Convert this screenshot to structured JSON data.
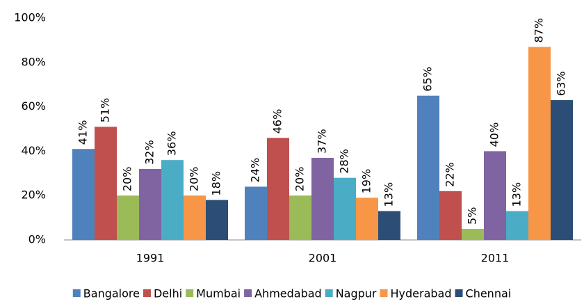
{
  "chart_data": {
    "type": "bar",
    "categories": [
      "1991",
      "2001",
      "2011"
    ],
    "series": [
      {
        "name": "Bangalore",
        "color": "#4f81bd",
        "values": [
          41,
          24,
          65
        ],
        "value_labels": [
          "41%",
          "24%",
          "65%"
        ]
      },
      {
        "name": "Delhi",
        "color": "#c0504d",
        "values": [
          51,
          46,
          22
        ],
        "value_labels": [
          "51%",
          "46%",
          "22%"
        ]
      },
      {
        "name": "Mumbai",
        "color": "#9bbb59",
        "values": [
          20,
          20,
          5
        ],
        "value_labels": [
          "20%",
          "20%",
          "5%"
        ]
      },
      {
        "name": "Ahmedabad",
        "color": "#8064a2",
        "values": [
          32,
          37,
          40
        ],
        "value_labels": [
          "32%",
          "37%",
          "40%"
        ]
      },
      {
        "name": "Nagpur",
        "color": "#4bacc6",
        "values": [
          36,
          28,
          13
        ],
        "value_labels": [
          "36%",
          "28%",
          "13%"
        ]
      },
      {
        "name": "Hyderabad",
        "color": "#f79646",
        "values": [
          20,
          19,
          87
        ],
        "value_labels": [
          "20%",
          "19%",
          "87%"
        ]
      },
      {
        "name": "Chennai",
        "color": "#2c4d75",
        "values": [
          18,
          13,
          63
        ],
        "value_labels": [
          "18%",
          "13%",
          "63%"
        ]
      }
    ],
    "ylim": [
      0,
      100
    ],
    "yticks": [
      {
        "value": 0,
        "label": "0%"
      },
      {
        "value": 20,
        "label": "20%"
      },
      {
        "value": 40,
        "label": "40%"
      },
      {
        "value": 60,
        "label": "60%"
      },
      {
        "value": 80,
        "label": "80%"
      },
      {
        "value": 100,
        "label": "100%"
      }
    ],
    "legend": "bottom"
  }
}
